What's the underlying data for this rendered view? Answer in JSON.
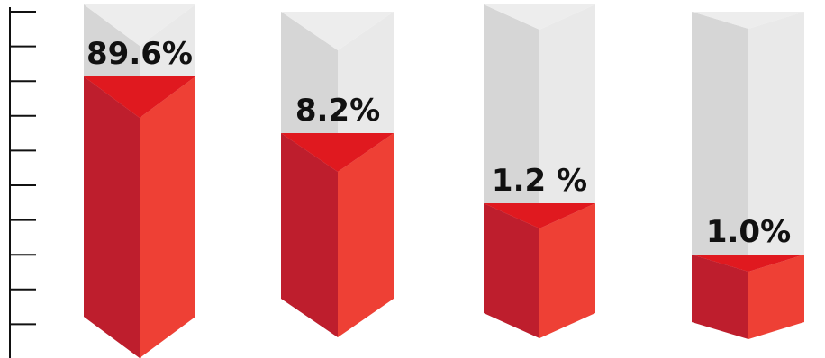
{
  "chart_data": {
    "type": "bar",
    "style": "3d-triangular-prism",
    "categories": [
      "",
      "",
      "",
      ""
    ],
    "values": [
      89.6,
      8.2,
      1.2,
      1.0
    ],
    "value_labels": [
      "89.6%",
      "8.2%",
      "1.2 %",
      "1.0%"
    ],
    "title": "",
    "xlabel": "",
    "ylabel": "",
    "ylim": [
      0,
      100
    ],
    "grid": false,
    "legend": "none",
    "axis": "left-ruler-ticks"
  },
  "colors": {
    "bar_left_face": "#be1e2d",
    "bar_right_face": "#ee4035",
    "bar_top_face": "#e0191f",
    "ghost_left_face": "#d6d6d6",
    "ghost_right_face": "#e9e9e9",
    "ghost_top_face": "#ededed",
    "axis": "#111111",
    "label": "#111111"
  }
}
